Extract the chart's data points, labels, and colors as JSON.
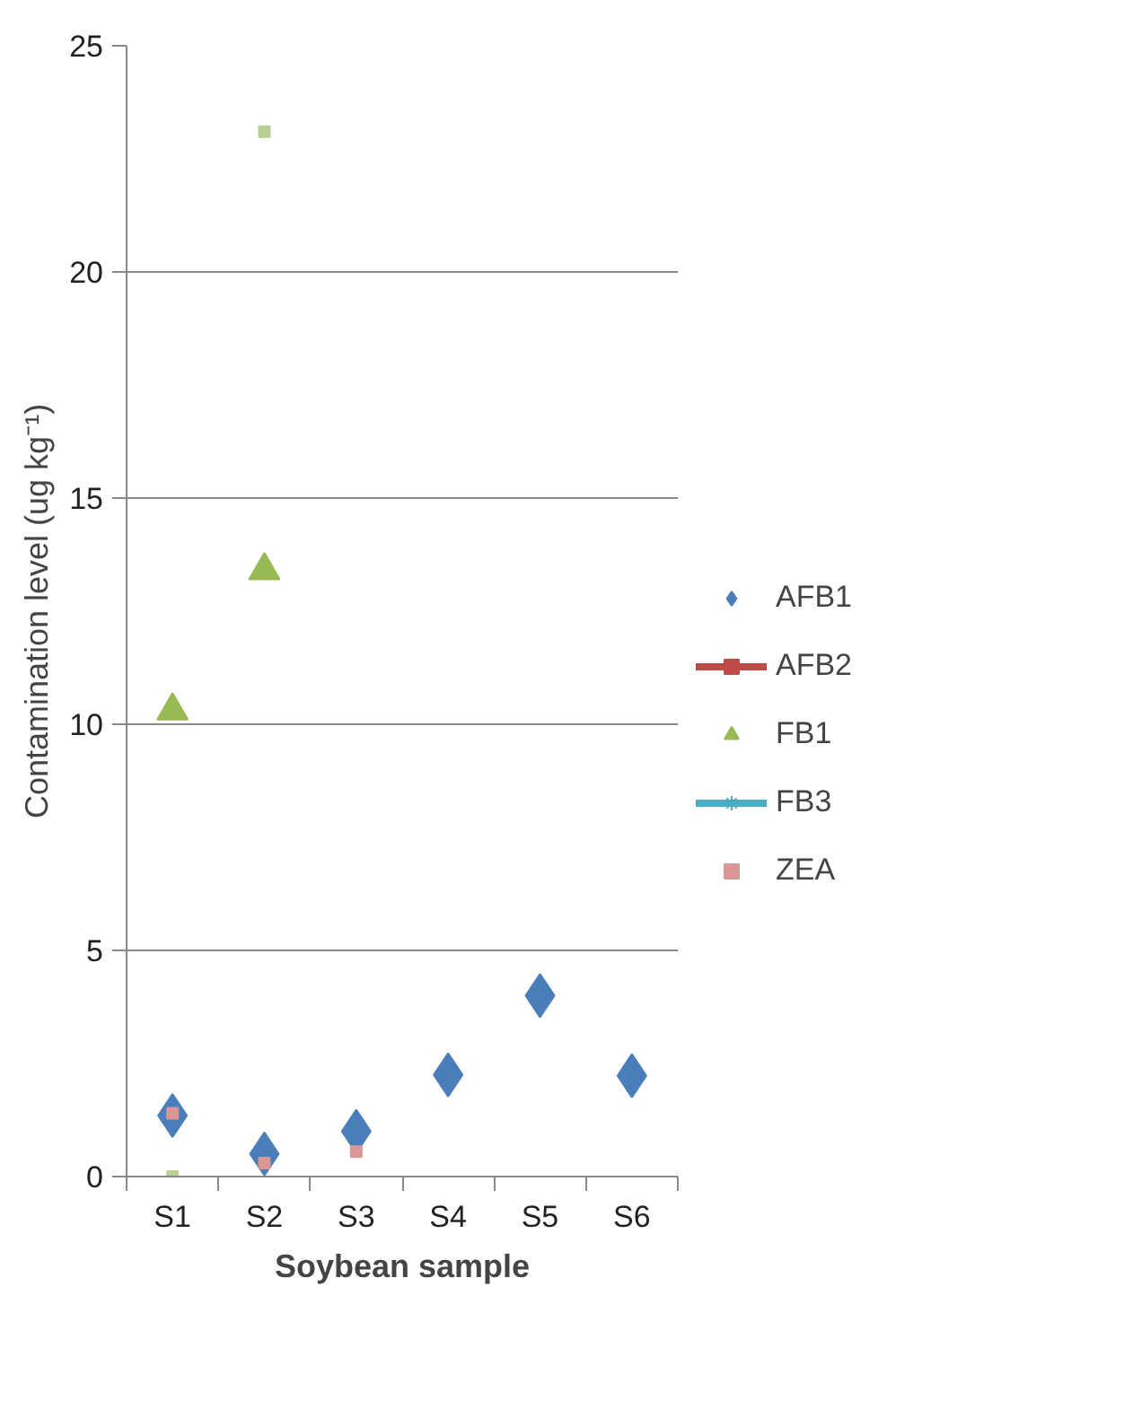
{
  "chart_data": {
    "type": "scatter",
    "xlabel": "Soybean sample",
    "ylabel": "Contamination level (ug kg⁻¹)",
    "categories": [
      "S1",
      "S2",
      "S3",
      "S4",
      "S5",
      "S6"
    ],
    "ylim": [
      0,
      25
    ],
    "yticks": [
      0,
      5,
      10,
      15,
      20,
      25
    ],
    "grid": "y",
    "legend": "right",
    "series": [
      {
        "name": "AFB1",
        "marker": "diamond",
        "color": "#4a7ebb",
        "values": [
          1.35,
          0.5,
          1.0,
          2.25,
          4.0,
          2.23
        ]
      },
      {
        "name": "AFB2",
        "type": "line",
        "marker": "square",
        "color": "#be4b48",
        "values": [
          null,
          null,
          null,
          null,
          null,
          null
        ]
      },
      {
        "name": "FB1",
        "marker": "triangle",
        "color": "#98b954",
        "values": [
          10.3,
          13.4,
          null,
          null,
          null,
          null
        ]
      },
      {
        "name": "FB3",
        "type": "line",
        "marker": "star",
        "color": "#4bacc6",
        "values": [
          null,
          null,
          null,
          null,
          null,
          null
        ]
      },
      {
        "name": "ZEA",
        "marker": "square",
        "color": "#d99694",
        "values": [
          1.4,
          0.3,
          0.55,
          null,
          null,
          null
        ]
      },
      {
        "marker": "square",
        "color": "#b7d094",
        "values": [
          0.0,
          23.1,
          null,
          null,
          null,
          null
        ]
      }
    ]
  }
}
